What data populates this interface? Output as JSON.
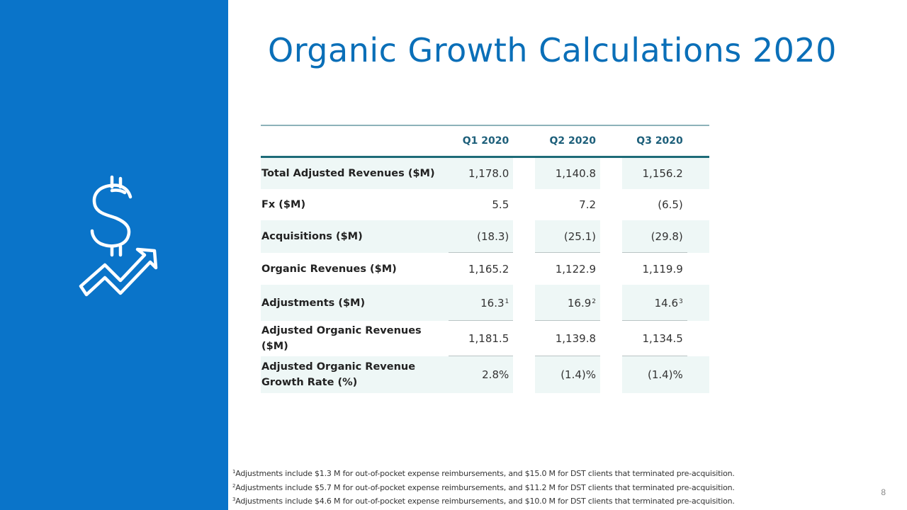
{
  "slide": {
    "title": "Organic Growth Calculations 2020",
    "page_number": "8",
    "icon": "dollar-growth-arrow-icon",
    "panel_color": "#0a74c9"
  },
  "table": {
    "headers": [
      "",
      "Q1 2020",
      "Q2 2020",
      "Q3 2020"
    ],
    "rows": [
      {
        "label": "Total Adjusted Revenues ($M)",
        "values": [
          "1,178.0",
          "1,140.8",
          "1,156.2"
        ]
      },
      {
        "label": "Fx ($M)",
        "values": [
          "5.5",
          "7.2",
          "(6.5)"
        ]
      },
      {
        "label": "Acquisitions ($M)",
        "values": [
          "(18.3)",
          "(25.1)",
          "(29.8)"
        ]
      },
      {
        "label": "Organic Revenues ($M)",
        "values": [
          "1,165.2",
          "1,122.9",
          "1,119.9"
        ]
      },
      {
        "label": "Adjustments ($M)",
        "values": [
          "16.3",
          "16.9",
          "14.6"
        ],
        "superscripts": [
          "1",
          "2",
          "3"
        ]
      },
      {
        "label": "Adjusted Organic Revenues ($M)",
        "values": [
          "1,181.5",
          "1,139.8",
          "1,134.5"
        ]
      },
      {
        "label": "Adjusted Organic Revenue Growth Rate (%)",
        "values": [
          "2.8%",
          "(1.4)%",
          "(1.4)%"
        ]
      }
    ]
  },
  "footnotes": [
    {
      "mark": "1",
      "text": "Adjustments include $1.3 M for out-of-pocket expense reimbursements, and $15.0 M for DST clients that terminated pre-acquisition."
    },
    {
      "mark": "2",
      "text": "Adjustments include $5.7 M for out-of-pocket expense reimbursements, and $11.2 M for DST clients that terminated pre-acquisition."
    },
    {
      "mark": "3",
      "text": "Adjustments include $4.6 M for out-of-pocket expense reimbursements, and $10.0 M for DST clients that terminated pre-acquisition."
    }
  ]
}
